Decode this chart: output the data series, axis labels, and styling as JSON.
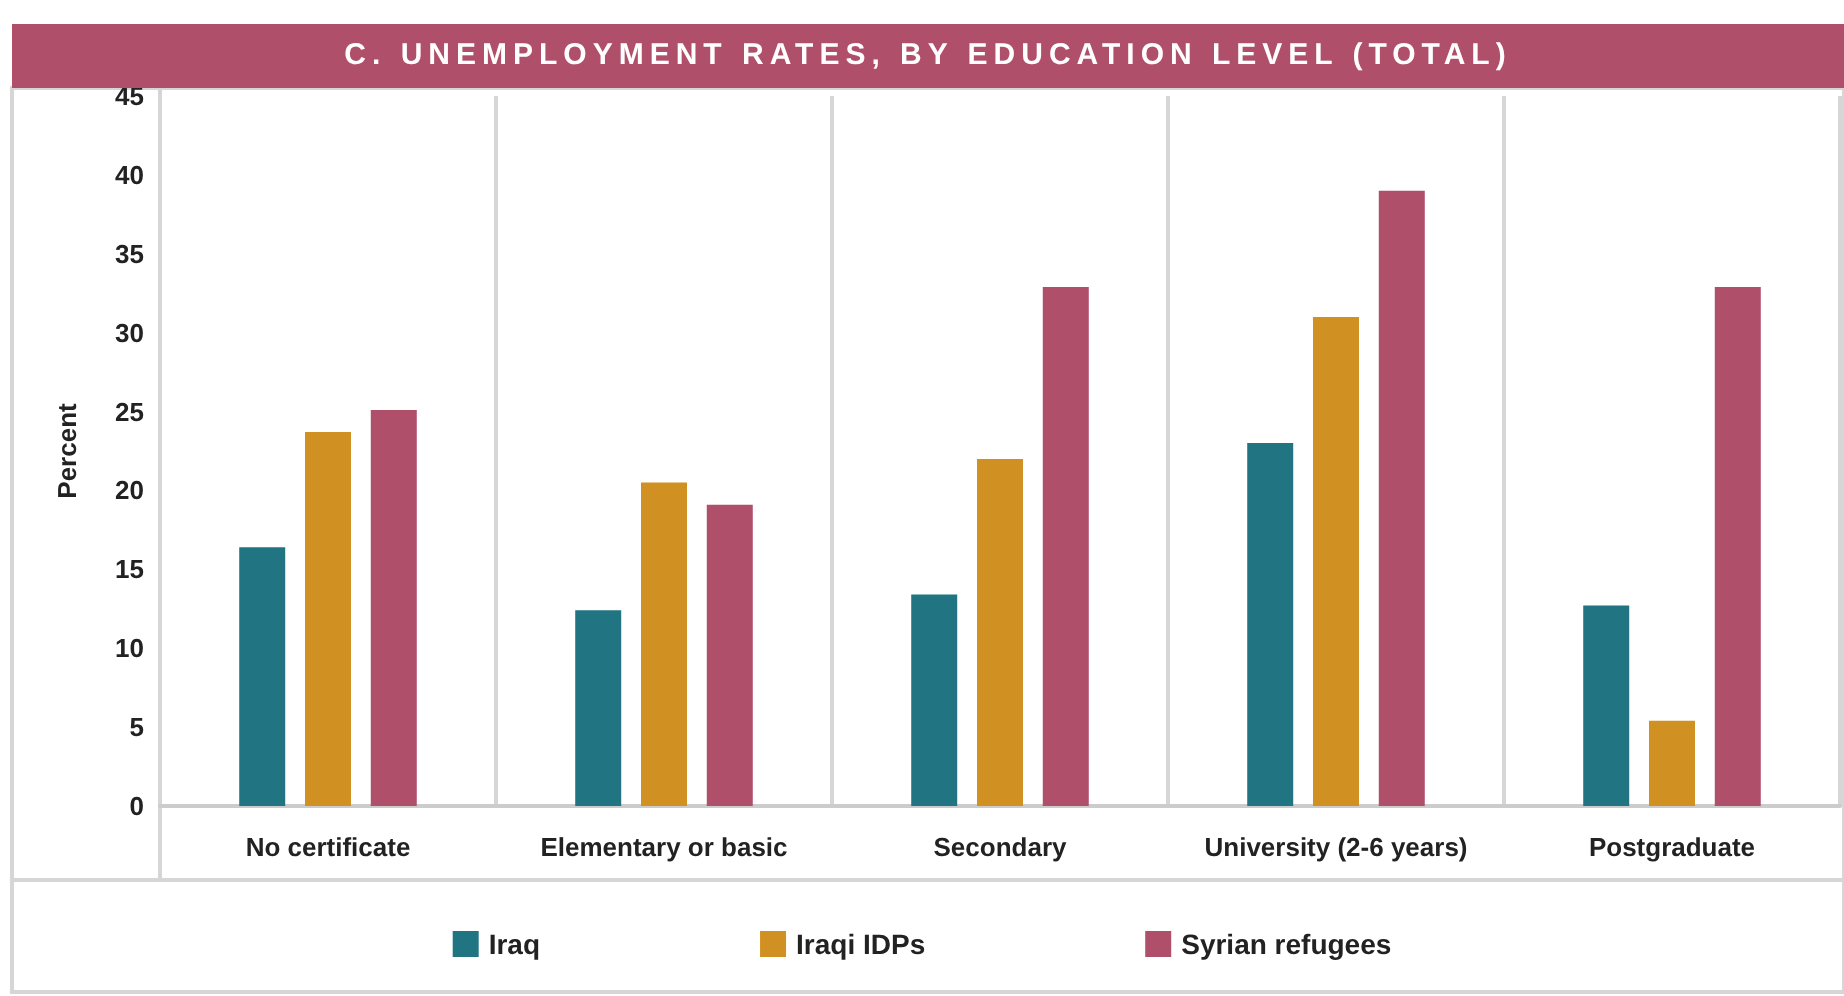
{
  "chart_data": {
    "type": "bar",
    "title": "C. UNEMPLOYMENT RATES, BY EDUCATION LEVEL (TOTAL)",
    "ylabel": "Percent",
    "categories": [
      "No certificate",
      "Elementary or basic",
      "Secondary",
      "University (2-6 years)",
      "Postgraduate"
    ],
    "series": [
      {
        "name": "Iraq",
        "color": "#217582",
        "values": [
          16.4,
          12.4,
          13.4,
          23.0,
          12.7
        ]
      },
      {
        "name": "Iraqi IDPs",
        "color": "#d09122",
        "values": [
          23.7,
          20.5,
          22.0,
          31.0,
          5.4
        ]
      },
      {
        "name": "Syrian refugees",
        "color": "#b04f6a",
        "values": [
          25.1,
          19.1,
          32.9,
          39.0,
          32.9
        ]
      }
    ],
    "ylim": [
      0,
      45
    ],
    "yticks": [
      0,
      5,
      10,
      15,
      20,
      25,
      30,
      35,
      40,
      45
    ],
    "grid": "x",
    "legend": "bottom"
  }
}
